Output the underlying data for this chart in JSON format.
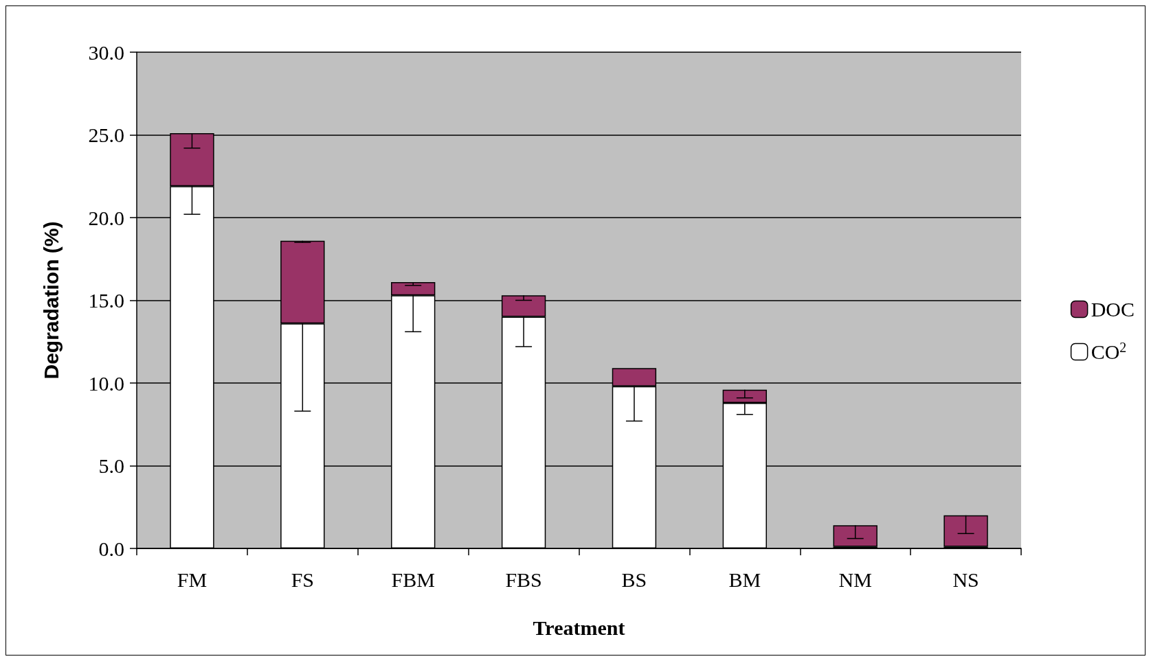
{
  "chart_data": {
    "type": "bar",
    "stacked": true,
    "xlabel": "Treatment",
    "ylabel": "Degradation (%)",
    "categories": [
      "FM",
      "FS",
      "FBM",
      "FBS",
      "BS",
      "BM",
      "NM",
      "NS"
    ],
    "series": [
      {
        "name": "CO$^{2}$",
        "color": "#ffffff",
        "values": [
          21.9,
          13.6,
          15.3,
          14.0,
          9.8,
          8.8,
          0.1,
          0.1
        ],
        "errors": [
          [
            20.2,
            21.9
          ],
          [
            8.3,
            13.6
          ],
          [
            13.1,
            15.3
          ],
          [
            12.2,
            14.0
          ],
          [
            7.7,
            9.8
          ],
          [
            8.1,
            8.8
          ],
          null,
          null
        ]
      },
      {
        "name": "DOC",
        "color": "#993366",
        "values": [
          3.2,
          5.0,
          0.8,
          1.3,
          1.1,
          0.8,
          1.3,
          1.9
        ],
        "errors": [
          [
            24.2,
            25.1
          ],
          [
            18.5,
            18.6
          ],
          [
            15.9,
            16.1
          ],
          [
            15.0,
            15.3
          ],
          null,
          [
            9.1,
            9.6
          ],
          [
            0.6,
            1.4
          ],
          [
            0.9,
            2.0
          ]
        ]
      }
    ],
    "ylim": [
      0,
      30
    ],
    "yticks": [
      {
        "value": 0,
        "label": "0.0"
      },
      {
        "value": 5,
        "label": "5.0"
      },
      {
        "value": 10,
        "label": "10.0"
      },
      {
        "value": 15,
        "label": "15.0"
      },
      {
        "value": 20,
        "label": "20.0"
      },
      {
        "value": 25,
        "label": "25.0"
      },
      {
        "value": 30,
        "label": "30.0"
      }
    ],
    "grid": "y",
    "legend": "right"
  }
}
